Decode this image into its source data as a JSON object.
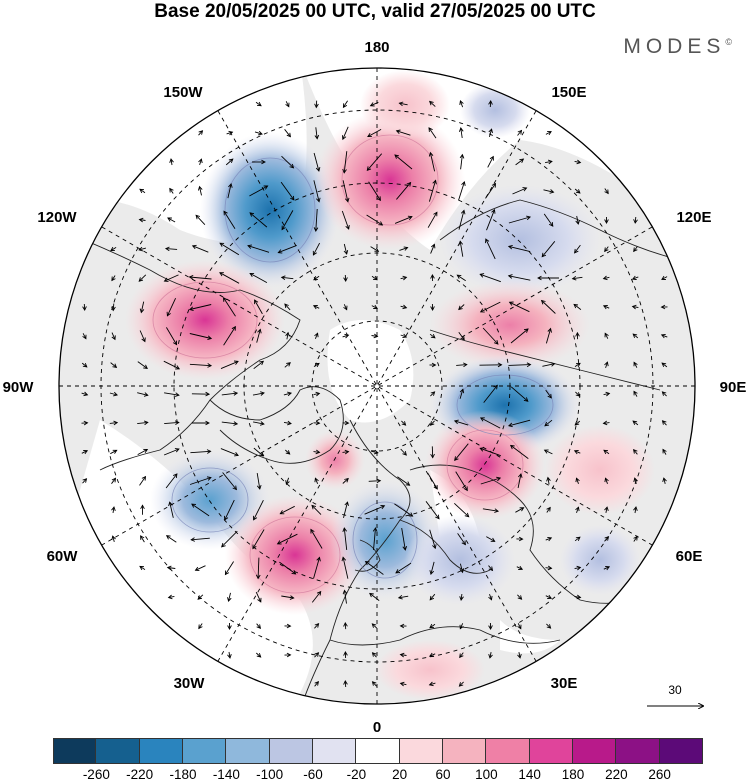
{
  "title": "Base 20/05/2025 00 UTC, valid 27/05/2025 00 UTC",
  "brand": "MODES",
  "brand_mark": "©",
  "map": {
    "projection": "polar stereographic (north pole)",
    "longitude_labels": {
      "top": "180",
      "top_left": "150W",
      "top_right": "150E",
      "upper_left": "120W",
      "upper_right": "120E",
      "left": "90W",
      "right": "90E",
      "lower_left": "60W",
      "lower_right": "60E",
      "bottom_left": "30W",
      "bottom_right": "30E",
      "bottom": "0"
    },
    "reference_vector_label": "30",
    "grid": "dashed meridians and parallels"
  },
  "colorbar": {
    "ticks": [
      "-260",
      "-220",
      "-180",
      "-140",
      "-100",
      "-60",
      "-20",
      "20",
      "60",
      "100",
      "140",
      "180",
      "220",
      "260"
    ],
    "colors": [
      "#0d3a5c",
      "#15608f",
      "#2a84be",
      "#5aa1cf",
      "#8fb8dc",
      "#bcc6e3",
      "#e1e2f1",
      "#ffffff",
      "#fbd9dd",
      "#f5b3bf",
      "#ef80a6",
      "#e0449b",
      "#b81a8a",
      "#8c1185",
      "#5c0a78"
    ]
  },
  "colors": {
    "land": "#ebebeb",
    "ocean": "#ffffff",
    "coastline": "#222222",
    "grid": "#000000"
  }
}
